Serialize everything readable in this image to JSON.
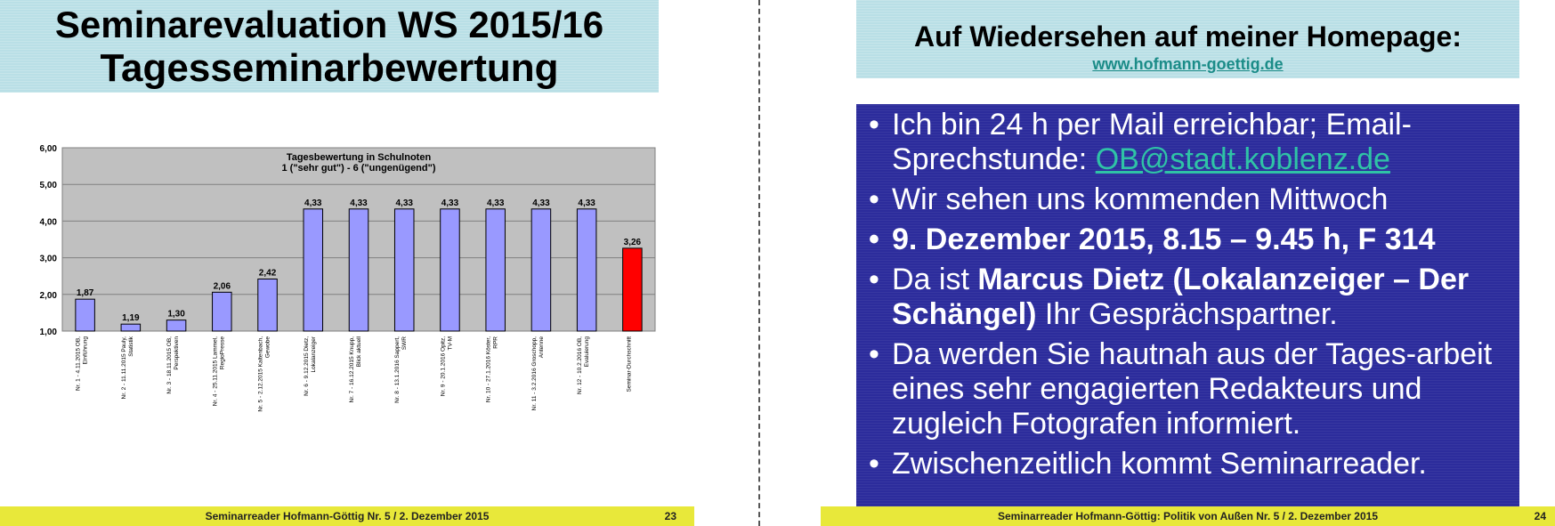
{
  "left_slide": {
    "title_line1": "Seminarevaluation WS 2015/16",
    "title_line2": "Tagesseminarbewertung",
    "footer_text": "Seminarreader  Hofmann-Göttig Nr. 5 / 2. Dezember 2015",
    "page_number": "23"
  },
  "right_slide": {
    "title": "Auf Wiedersehen auf meiner Homepage:",
    "homepage_link": "www.hofmann-goettig.de",
    "bullets": {
      "b1_text": "Ich bin 24 h per Mail erreichbar; Email-Sprechstunde: ",
      "b1_link": "OB@stadt.koblenz.de",
      "b2": "Wir sehen uns kommenden Mittwoch",
      "b3": "9. Dezember 2015, 8.15 – 9.45 h, F 314",
      "b4_pre": "Da ist ",
      "b4_bold": "Marcus Dietz (Lokalanzeiger – Der Schängel)",
      "b4_post": " Ihr Gesprächspartner.",
      "b5": "Da werden Sie hautnah aus der Tages-arbeit eines sehr engagierten Redakteurs und zugleich Fotografen informiert.",
      "b6": "Zwischenzeitlich kommt Seminarreader."
    },
    "footer_text": "Seminarreader Hofmann-Göttig: Politik von Außen Nr. 5 / 2. Dezember 2015",
    "page_number": "24"
  },
  "chart_data": {
    "type": "bar",
    "title": "Tagesbewertung in Schulnoten",
    "subtitle": "1 (\"sehr gut\") - 6 (\"ungenügend\")",
    "ylim": [
      1,
      6
    ],
    "yticks": [
      "1,00",
      "2,00",
      "3,00",
      "4,00",
      "5,00",
      "6,00"
    ],
    "grid": true,
    "categories": [
      "Nr. 1 - 4.11.2015 OB, Einführung",
      "Nr. 2 - 11.11.2015 Pauly, Statistik",
      "Nr. 3 - 18.11.2015 OB, Perspektiven",
      "Nr. 4 - 25.11.2015 Lammel, RegioPresse",
      "Nr. 5 - 2.12.2015 Kaltenbach, Gewobe",
      "Nr. 6 - 9.12.2015 Dietz, Lokalanzeiger",
      "Nr. 7 - 16.12.2015 Knupp, Blick aktuell",
      "Nr. 8 - 13.1.2016 Sappert, SWR",
      "Nr. 9 - 20.1.2016 Opitz, TV-M",
      "Nr. 10 - 27.1.2016 Köster, RPR",
      "Nr. 11 - 3.2.2016 Groschopp, Antenne",
      "Nr. 12 - 10.2.2016 OB, Evaluierung",
      "Seminar-Durchschnitt"
    ],
    "values": [
      1.87,
      1.19,
      1.3,
      2.06,
      2.42,
      4.33,
      4.33,
      4.33,
      4.33,
      4.33,
      4.33,
      4.33,
      3.26
    ],
    "value_labels": [
      "1,87",
      "1,19",
      "1,30",
      "2,06",
      "2,42",
      "4,33",
      "4,33",
      "4,33",
      "4,33",
      "4,33",
      "4,33",
      "4,33",
      "3,26"
    ],
    "bar_color": "#9999ff",
    "highlight_color": "#ff0000",
    "plot_background": "#c0c0c0"
  }
}
